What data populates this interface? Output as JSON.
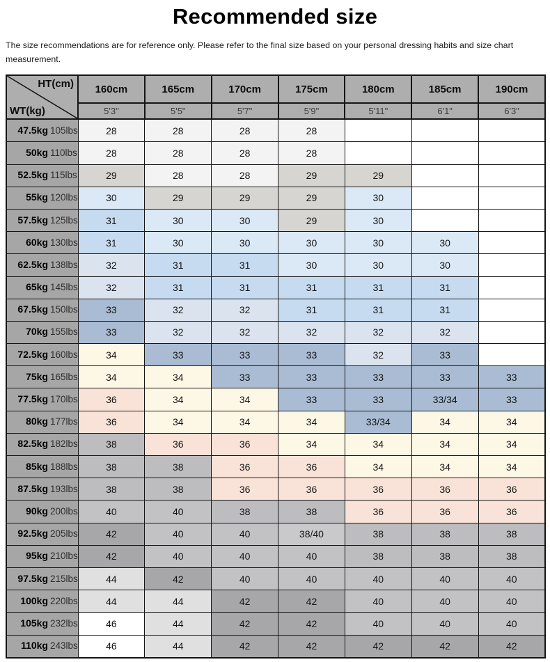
{
  "page": {
    "title": "Recommended size",
    "subtitle": "The size recommendations are for reference only. Please refer to the final size based on your personal dressing habits and size chart measurement."
  },
  "table": {
    "corner_top_right": "HT(cm)",
    "corner_bottom_left": "WT(kg)",
    "height_cm_labels": [
      "160cm",
      "165cm",
      "170cm",
      "175cm",
      "180cm",
      "185cm",
      "190cm"
    ],
    "height_ft_labels": [
      "5'3\"",
      "5'5\"",
      "5'7\"",
      "5'9\"",
      "5'11\"",
      "6'1\"",
      "6'3\""
    ],
    "rows": [
      {
        "kg": "47.5kg",
        "lbs": "105lbs",
        "sizes": [
          "28",
          "28",
          "28",
          "28",
          "",
          "",
          ""
        ]
      },
      {
        "kg": "50kg",
        "lbs": "110lbs",
        "sizes": [
          "28",
          "28",
          "28",
          "28",
          "",
          "",
          ""
        ]
      },
      {
        "kg": "52.5kg",
        "lbs": "115lbs",
        "sizes": [
          "29",
          "28",
          "28",
          "29",
          "29",
          "",
          ""
        ]
      },
      {
        "kg": "55kg",
        "lbs": "120lbs",
        "sizes": [
          "30",
          "29",
          "29",
          "29",
          "30",
          "",
          ""
        ]
      },
      {
        "kg": "57.5kg",
        "lbs": "125lbs",
        "sizes": [
          "31",
          "30",
          "30",
          "29",
          "30",
          "",
          ""
        ]
      },
      {
        "kg": "60kg",
        "lbs": "130lbs",
        "sizes": [
          "31",
          "30",
          "30",
          "30",
          "30",
          "30",
          ""
        ]
      },
      {
        "kg": "62.5kg",
        "lbs": "138lbs",
        "sizes": [
          "32",
          "31",
          "31",
          "30",
          "30",
          "30",
          ""
        ]
      },
      {
        "kg": "65kg",
        "lbs": "145lbs",
        "sizes": [
          "32",
          "31",
          "31",
          "31",
          "31",
          "31",
          ""
        ]
      },
      {
        "kg": "67.5kg",
        "lbs": "150lbs",
        "sizes": [
          "33",
          "32",
          "32",
          "31",
          "31",
          "31",
          ""
        ]
      },
      {
        "kg": "70kg",
        "lbs": "155lbs",
        "sizes": [
          "33",
          "32",
          "32",
          "32",
          "32",
          "32",
          ""
        ]
      },
      {
        "kg": "72.5kg",
        "lbs": "160lbs",
        "sizes": [
          "34",
          "33",
          "33",
          "33",
          "32",
          "33",
          ""
        ]
      },
      {
        "kg": "75kg",
        "lbs": "165lbs",
        "sizes": [
          "34",
          "34",
          "33",
          "33",
          "33",
          "33",
          "33"
        ]
      },
      {
        "kg": "77.5kg",
        "lbs": "170lbs",
        "sizes": [
          "36",
          "34",
          "34",
          "33",
          "33",
          "33/34",
          "33"
        ]
      },
      {
        "kg": "80kg",
        "lbs": "177lbs",
        "sizes": [
          "36",
          "34",
          "34",
          "34",
          "33/34",
          "34",
          "34"
        ]
      },
      {
        "kg": "82.5kg",
        "lbs": "182lbs",
        "sizes": [
          "38",
          "36",
          "36",
          "34",
          "34",
          "34",
          "34"
        ]
      },
      {
        "kg": "85kg",
        "lbs": "188lbs",
        "sizes": [
          "38",
          "38",
          "36",
          "36",
          "34",
          "34",
          "34"
        ]
      },
      {
        "kg": "87.5kg",
        "lbs": "193lbs",
        "sizes": [
          "38",
          "38",
          "36",
          "36",
          "36",
          "36",
          "36"
        ]
      },
      {
        "kg": "90kg",
        "lbs": "200lbs",
        "sizes": [
          "40",
          "40",
          "38",
          "38",
          "36",
          "36",
          "36"
        ]
      },
      {
        "kg": "92.5kg",
        "lbs": "205lbs",
        "sizes": [
          "42",
          "40",
          "40",
          "38/40",
          "38",
          "38",
          "38"
        ]
      },
      {
        "kg": "95kg",
        "lbs": "210lbs",
        "sizes": [
          "42",
          "40",
          "40",
          "40",
          "38",
          "38",
          "38"
        ]
      },
      {
        "kg": "97.5kg",
        "lbs": "215lbs",
        "sizes": [
          "44",
          "42",
          "40",
          "40",
          "40",
          "40",
          "40"
        ]
      },
      {
        "kg": "100kg",
        "lbs": "220lbs",
        "sizes": [
          "44",
          "44",
          "42",
          "42",
          "40",
          "40",
          "40"
        ]
      },
      {
        "kg": "105kg",
        "lbs": "232lbs",
        "sizes": [
          "46",
          "44",
          "42",
          "42",
          "40",
          "40",
          "40"
        ]
      },
      {
        "kg": "110kg",
        "lbs": "243lbs",
        "sizes": [
          "46",
          "44",
          "42",
          "42",
          "42",
          "42",
          "42"
        ]
      }
    ],
    "size_colors": {
      "28": "#f3f3f3",
      "29": "#d6d5d1",
      "30": "#dbe9f6",
      "31": "#c6dbf0",
      "32": "#dbe3ee",
      "33": "#a9bcd3",
      "33/34": "#a9bcd3",
      "34": "#fdf7e5",
      "36": "#f9e3d8",
      "38": "#bdbdbf",
      "38/40": "#c9c9cb",
      "40": "#c2c2c4",
      "42": "#a7a7a9",
      "44": "#e0e0e0",
      "46": "#ffffff",
      "": "#ffffff"
    },
    "header_bg": "#aeaeae",
    "label_bg": "#a6a6a6",
    "border_color": "#151515"
  }
}
